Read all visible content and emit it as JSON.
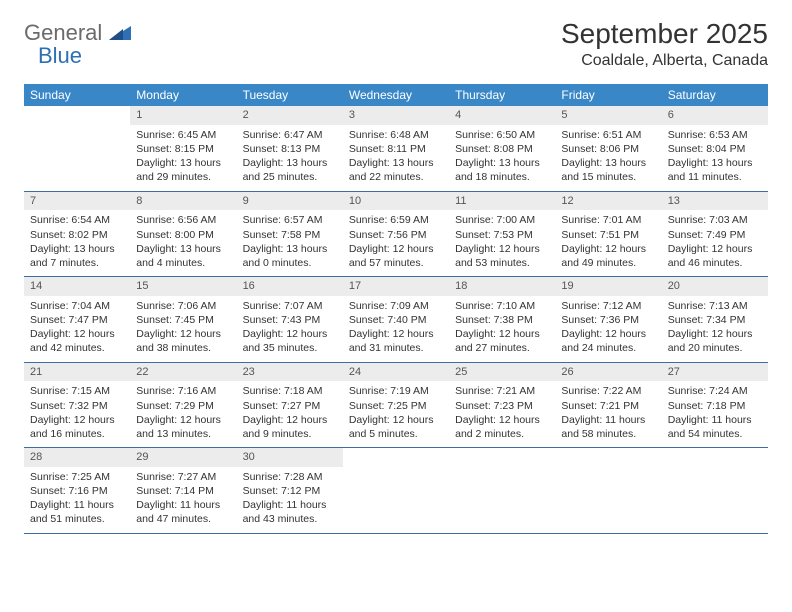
{
  "logo": {
    "text_gray": "General",
    "text_blue": "Blue"
  },
  "title": "September 2025",
  "location": "Coaldale, Alberta, Canada",
  "day_names": [
    "Sunday",
    "Monday",
    "Tuesday",
    "Wednesday",
    "Thursday",
    "Friday",
    "Saturday"
  ],
  "colors": {
    "header_bg": "#3a87c8",
    "header_text": "#ffffff",
    "daynum_bg": "#ececec",
    "rule": "#3a6fa0",
    "logo_gray": "#6b6b6b",
    "logo_blue": "#2f6fb3"
  },
  "weeks": [
    [
      {
        "n": "",
        "sunrise": "",
        "sunset": "",
        "daylight": ""
      },
      {
        "n": "1",
        "sunrise": "Sunrise: 6:45 AM",
        "sunset": "Sunset: 8:15 PM",
        "daylight": "Daylight: 13 hours and 29 minutes."
      },
      {
        "n": "2",
        "sunrise": "Sunrise: 6:47 AM",
        "sunset": "Sunset: 8:13 PM",
        "daylight": "Daylight: 13 hours and 25 minutes."
      },
      {
        "n": "3",
        "sunrise": "Sunrise: 6:48 AM",
        "sunset": "Sunset: 8:11 PM",
        "daylight": "Daylight: 13 hours and 22 minutes."
      },
      {
        "n": "4",
        "sunrise": "Sunrise: 6:50 AM",
        "sunset": "Sunset: 8:08 PM",
        "daylight": "Daylight: 13 hours and 18 minutes."
      },
      {
        "n": "5",
        "sunrise": "Sunrise: 6:51 AM",
        "sunset": "Sunset: 8:06 PM",
        "daylight": "Daylight: 13 hours and 15 minutes."
      },
      {
        "n": "6",
        "sunrise": "Sunrise: 6:53 AM",
        "sunset": "Sunset: 8:04 PM",
        "daylight": "Daylight: 13 hours and 11 minutes."
      }
    ],
    [
      {
        "n": "7",
        "sunrise": "Sunrise: 6:54 AM",
        "sunset": "Sunset: 8:02 PM",
        "daylight": "Daylight: 13 hours and 7 minutes."
      },
      {
        "n": "8",
        "sunrise": "Sunrise: 6:56 AM",
        "sunset": "Sunset: 8:00 PM",
        "daylight": "Daylight: 13 hours and 4 minutes."
      },
      {
        "n": "9",
        "sunrise": "Sunrise: 6:57 AM",
        "sunset": "Sunset: 7:58 PM",
        "daylight": "Daylight: 13 hours and 0 minutes."
      },
      {
        "n": "10",
        "sunrise": "Sunrise: 6:59 AM",
        "sunset": "Sunset: 7:56 PM",
        "daylight": "Daylight: 12 hours and 57 minutes."
      },
      {
        "n": "11",
        "sunrise": "Sunrise: 7:00 AM",
        "sunset": "Sunset: 7:53 PM",
        "daylight": "Daylight: 12 hours and 53 minutes."
      },
      {
        "n": "12",
        "sunrise": "Sunrise: 7:01 AM",
        "sunset": "Sunset: 7:51 PM",
        "daylight": "Daylight: 12 hours and 49 minutes."
      },
      {
        "n": "13",
        "sunrise": "Sunrise: 7:03 AM",
        "sunset": "Sunset: 7:49 PM",
        "daylight": "Daylight: 12 hours and 46 minutes."
      }
    ],
    [
      {
        "n": "14",
        "sunrise": "Sunrise: 7:04 AM",
        "sunset": "Sunset: 7:47 PM",
        "daylight": "Daylight: 12 hours and 42 minutes."
      },
      {
        "n": "15",
        "sunrise": "Sunrise: 7:06 AM",
        "sunset": "Sunset: 7:45 PM",
        "daylight": "Daylight: 12 hours and 38 minutes."
      },
      {
        "n": "16",
        "sunrise": "Sunrise: 7:07 AM",
        "sunset": "Sunset: 7:43 PM",
        "daylight": "Daylight: 12 hours and 35 minutes."
      },
      {
        "n": "17",
        "sunrise": "Sunrise: 7:09 AM",
        "sunset": "Sunset: 7:40 PM",
        "daylight": "Daylight: 12 hours and 31 minutes."
      },
      {
        "n": "18",
        "sunrise": "Sunrise: 7:10 AM",
        "sunset": "Sunset: 7:38 PM",
        "daylight": "Daylight: 12 hours and 27 minutes."
      },
      {
        "n": "19",
        "sunrise": "Sunrise: 7:12 AM",
        "sunset": "Sunset: 7:36 PM",
        "daylight": "Daylight: 12 hours and 24 minutes."
      },
      {
        "n": "20",
        "sunrise": "Sunrise: 7:13 AM",
        "sunset": "Sunset: 7:34 PM",
        "daylight": "Daylight: 12 hours and 20 minutes."
      }
    ],
    [
      {
        "n": "21",
        "sunrise": "Sunrise: 7:15 AM",
        "sunset": "Sunset: 7:32 PM",
        "daylight": "Daylight: 12 hours and 16 minutes."
      },
      {
        "n": "22",
        "sunrise": "Sunrise: 7:16 AM",
        "sunset": "Sunset: 7:29 PM",
        "daylight": "Daylight: 12 hours and 13 minutes."
      },
      {
        "n": "23",
        "sunrise": "Sunrise: 7:18 AM",
        "sunset": "Sunset: 7:27 PM",
        "daylight": "Daylight: 12 hours and 9 minutes."
      },
      {
        "n": "24",
        "sunrise": "Sunrise: 7:19 AM",
        "sunset": "Sunset: 7:25 PM",
        "daylight": "Daylight: 12 hours and 5 minutes."
      },
      {
        "n": "25",
        "sunrise": "Sunrise: 7:21 AM",
        "sunset": "Sunset: 7:23 PM",
        "daylight": "Daylight: 12 hours and 2 minutes."
      },
      {
        "n": "26",
        "sunrise": "Sunrise: 7:22 AM",
        "sunset": "Sunset: 7:21 PM",
        "daylight": "Daylight: 11 hours and 58 minutes."
      },
      {
        "n": "27",
        "sunrise": "Sunrise: 7:24 AM",
        "sunset": "Sunset: 7:18 PM",
        "daylight": "Daylight: 11 hours and 54 minutes."
      }
    ],
    [
      {
        "n": "28",
        "sunrise": "Sunrise: 7:25 AM",
        "sunset": "Sunset: 7:16 PM",
        "daylight": "Daylight: 11 hours and 51 minutes."
      },
      {
        "n": "29",
        "sunrise": "Sunrise: 7:27 AM",
        "sunset": "Sunset: 7:14 PM",
        "daylight": "Daylight: 11 hours and 47 minutes."
      },
      {
        "n": "30",
        "sunrise": "Sunrise: 7:28 AM",
        "sunset": "Sunset: 7:12 PM",
        "daylight": "Daylight: 11 hours and 43 minutes."
      },
      {
        "n": "",
        "sunrise": "",
        "sunset": "",
        "daylight": ""
      },
      {
        "n": "",
        "sunrise": "",
        "sunset": "",
        "daylight": ""
      },
      {
        "n": "",
        "sunrise": "",
        "sunset": "",
        "daylight": ""
      },
      {
        "n": "",
        "sunrise": "",
        "sunset": "",
        "daylight": ""
      }
    ]
  ]
}
